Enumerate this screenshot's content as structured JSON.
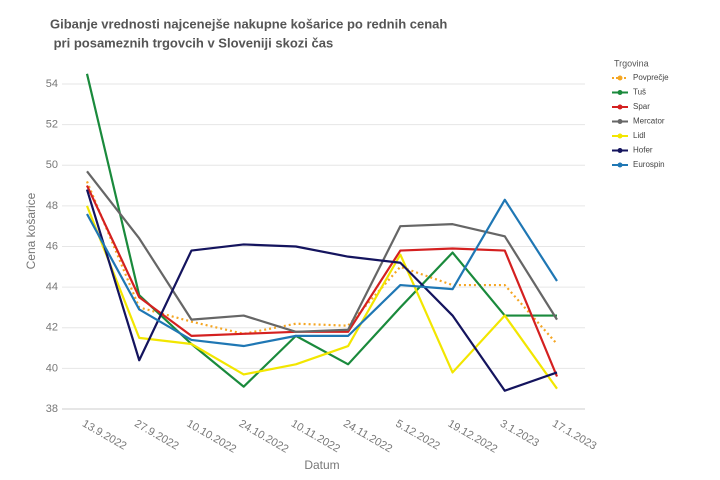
{
  "chart_data": {
    "type": "line",
    "title": [
      "Gibanje vrednosti najcenejše nakupne košarice  po rednih cenah",
      " pri posameznih trgovcih v Sloveniji skozi čas"
    ],
    "x_label": "Datum",
    "y_label": "Cena košarice",
    "legend_title": "Trgovina",
    "legend_position": "right",
    "grid": true,
    "categories": [
      "13.9.2022",
      "27.9.2022",
      "10.10.2022",
      "24.10.2022",
      "10.11.2022",
      "24.11.2022",
      "5.12.2022",
      "19.12.2022",
      "3.1.2023",
      "17.1.2023"
    ],
    "ylim": [
      38,
      55.5
    ],
    "yticks": [
      38,
      40,
      42,
      44,
      46,
      48,
      50,
      52,
      54
    ],
    "series": [
      {
        "name": "Povprečje",
        "color": "#f5a623",
        "dashed": true,
        "values": [
          49.2,
          43.0,
          42.3,
          41.7,
          42.2,
          42.1,
          45.0,
          44.1,
          44.1,
          41.2
        ]
      },
      {
        "name": "Tuš",
        "color": "#1a8a3c",
        "values": [
          54.5,
          43.6,
          41.2,
          39.1,
          41.6,
          40.2,
          43.0,
          45.7,
          42.6,
          42.6
        ]
      },
      {
        "name": "Spar",
        "color": "#d42020",
        "values": [
          49.0,
          43.5,
          41.6,
          41.7,
          41.8,
          41.8,
          45.8,
          45.9,
          45.8,
          39.6
        ]
      },
      {
        "name": "Mercator",
        "color": "#666666",
        "values": [
          49.7,
          46.4,
          42.4,
          42.6,
          41.8,
          41.9,
          47.0,
          47.1,
          46.5,
          42.4
        ]
      },
      {
        "name": "Lidl",
        "color": "#f2e600",
        "values": [
          48.0,
          41.5,
          41.2,
          39.7,
          40.2,
          41.1,
          45.6,
          39.8,
          42.6,
          39.0
        ]
      },
      {
        "name": "Hofer",
        "color": "#14145e",
        "values": [
          48.8,
          40.4,
          45.8,
          46.1,
          46.0,
          45.5,
          45.2,
          42.6,
          38.9,
          39.8
        ]
      },
      {
        "name": "Eurospin",
        "color": "#1f77b4",
        "values": [
          47.6,
          42.9,
          41.4,
          41.1,
          41.6,
          41.6,
          44.1,
          43.9,
          48.3,
          44.3
        ]
      }
    ]
  }
}
